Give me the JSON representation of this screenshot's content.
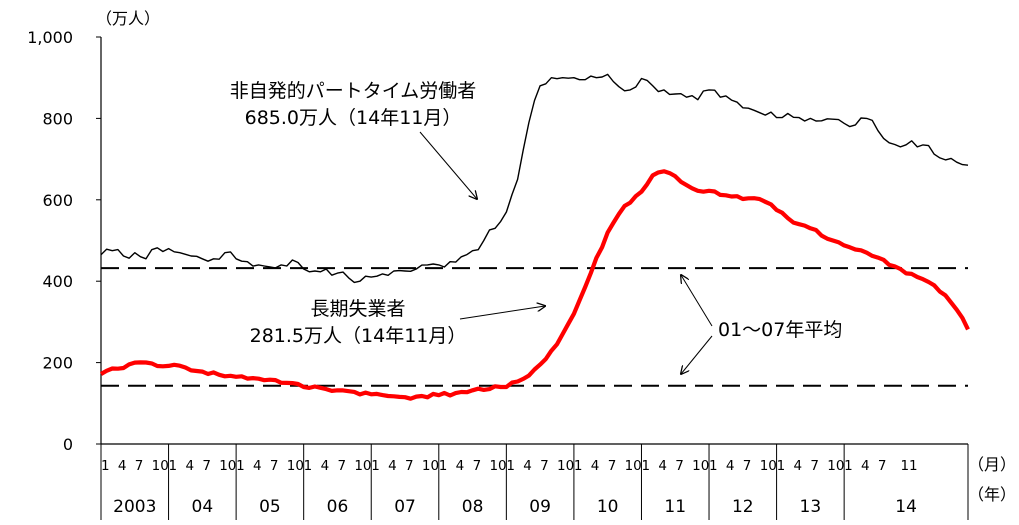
{
  "chart_data": {
    "type": "line",
    "y_unit_label": "（万人）",
    "x_month_unit": "（月）",
    "x_year_unit": "（年）",
    "ylim": [
      0,
      1000
    ],
    "y_ticks": [
      "0",
      "200",
      "400",
      "600",
      "800",
      "1,000"
    ],
    "y_tick_values": [
      0,
      200,
      400,
      600,
      800,
      1000
    ],
    "month_tick_labels": [
      "1",
      "4",
      "7",
      "10"
    ],
    "last_year_month_ticks": [
      "1",
      "4",
      "7",
      "11"
    ],
    "years": [
      "2003",
      "04",
      "05",
      "06",
      "07",
      "08",
      "09",
      "10",
      "11",
      "12",
      "13",
      "14"
    ],
    "x_range": [
      "2003-01",
      "2014-11"
    ],
    "grid": false,
    "series": [
      {
        "name": "非自発的パートタイム労働者",
        "color": "#000000",
        "annotation_lines": [
          "非自発的パートタイム労働者",
          "685.0万人（14年11月）"
        ],
        "anchors": [
          [
            0,
            465
          ],
          [
            2,
            475
          ],
          [
            4,
            462
          ],
          [
            6,
            470
          ],
          [
            8,
            455
          ],
          [
            10,
            482
          ],
          [
            12,
            480
          ],
          [
            14,
            470
          ],
          [
            16,
            462
          ],
          [
            18,
            455
          ],
          [
            20,
            455
          ],
          [
            22,
            470
          ],
          [
            24,
            455
          ],
          [
            26,
            448
          ],
          [
            28,
            440
          ],
          [
            30,
            435
          ],
          [
            32,
            440
          ],
          [
            34,
            452
          ],
          [
            36,
            430
          ],
          [
            38,
            425
          ],
          [
            40,
            430
          ],
          [
            42,
            420
          ],
          [
            44,
            408
          ],
          [
            46,
            400
          ],
          [
            48,
            410
          ],
          [
            50,
            418
          ],
          [
            52,
            425
          ],
          [
            54,
            425
          ],
          [
            56,
            430
          ],
          [
            58,
            440
          ],
          [
            60,
            440
          ],
          [
            62,
            448
          ],
          [
            64,
            460
          ],
          [
            66,
            475
          ],
          [
            68,
            500
          ],
          [
            70,
            530
          ],
          [
            72,
            570
          ],
          [
            74,
            650
          ],
          [
            76,
            790
          ],
          [
            78,
            880
          ],
          [
            80,
            900
          ],
          [
            82,
            900
          ],
          [
            84,
            900
          ],
          [
            86,
            895
          ],
          [
            88,
            900
          ],
          [
            90,
            908
          ],
          [
            92,
            878
          ],
          [
            94,
            870
          ],
          [
            96,
            898
          ],
          [
            98,
            880
          ],
          [
            100,
            870
          ],
          [
            102,
            860
          ],
          [
            104,
            852
          ],
          [
            106,
            846
          ],
          [
            108,
            870
          ],
          [
            110,
            852
          ],
          [
            112,
            845
          ],
          [
            114,
            826
          ],
          [
            116,
            820
          ],
          [
            118,
            808
          ],
          [
            120,
            802
          ],
          [
            122,
            812
          ],
          [
            124,
            802
          ],
          [
            126,
            800
          ],
          [
            128,
            794
          ],
          [
            130,
            798
          ],
          [
            132,
            788
          ],
          [
            134,
            784
          ],
          [
            136,
            800
          ],
          [
            138,
            770
          ],
          [
            140,
            740
          ],
          [
            142,
            730
          ],
          [
            144,
            745
          ],
          [
            146,
            735
          ],
          [
            148,
            712
          ],
          [
            150,
            698
          ],
          [
            154,
            685
          ]
        ],
        "unit": "万人"
      },
      {
        "name": "長期失業者",
        "color": "#ff0000",
        "annotation_lines": [
          "長期失業者",
          "281.5万人（14年11月）"
        ],
        "anchors": [
          [
            0,
            172
          ],
          [
            3,
            185
          ],
          [
            6,
            200
          ],
          [
            9,
            198
          ],
          [
            12,
            192
          ],
          [
            15,
            188
          ],
          [
            18,
            178
          ],
          [
            21,
            170
          ],
          [
            24,
            165
          ],
          [
            27,
            162
          ],
          [
            30,
            158
          ],
          [
            33,
            150
          ],
          [
            36,
            140
          ],
          [
            39,
            138
          ],
          [
            42,
            132
          ],
          [
            45,
            128
          ],
          [
            48,
            122
          ],
          [
            51,
            118
          ],
          [
            54,
            115
          ],
          [
            57,
            118
          ],
          [
            60,
            120
          ],
          [
            63,
            125
          ],
          [
            66,
            132
          ],
          [
            69,
            135
          ],
          [
            72,
            140
          ],
          [
            75,
            160
          ],
          [
            78,
            195
          ],
          [
            81,
            245
          ],
          [
            84,
            320
          ],
          [
            87,
            420
          ],
          [
            90,
            520
          ],
          [
            93,
            585
          ],
          [
            96,
            620
          ],
          [
            98,
            660
          ],
          [
            100,
            670
          ],
          [
            102,
            658
          ],
          [
            104,
            636
          ],
          [
            106,
            622
          ],
          [
            108,
            622
          ],
          [
            110,
            612
          ],
          [
            112,
            608
          ],
          [
            114,
            602
          ],
          [
            116,
            604
          ],
          [
            118,
            595
          ],
          [
            120,
            575
          ],
          [
            122,
            555
          ],
          [
            124,
            540
          ],
          [
            126,
            530
          ],
          [
            128,
            512
          ],
          [
            130,
            500
          ],
          [
            132,
            488
          ],
          [
            134,
            478
          ],
          [
            136,
            470
          ],
          [
            138,
            458
          ],
          [
            140,
            440
          ],
          [
            142,
            430
          ],
          [
            144,
            418
          ],
          [
            146,
            405
          ],
          [
            148,
            390
          ],
          [
            150,
            365
          ],
          [
            152,
            330
          ],
          [
            154,
            281.5
          ]
        ],
        "unit": "万人"
      }
    ],
    "reference_lines": [
      {
        "name": "01～07年平均",
        "label": "01～07年平均",
        "values": [
          432,
          143
        ],
        "style": "dashed"
      }
    ]
  }
}
